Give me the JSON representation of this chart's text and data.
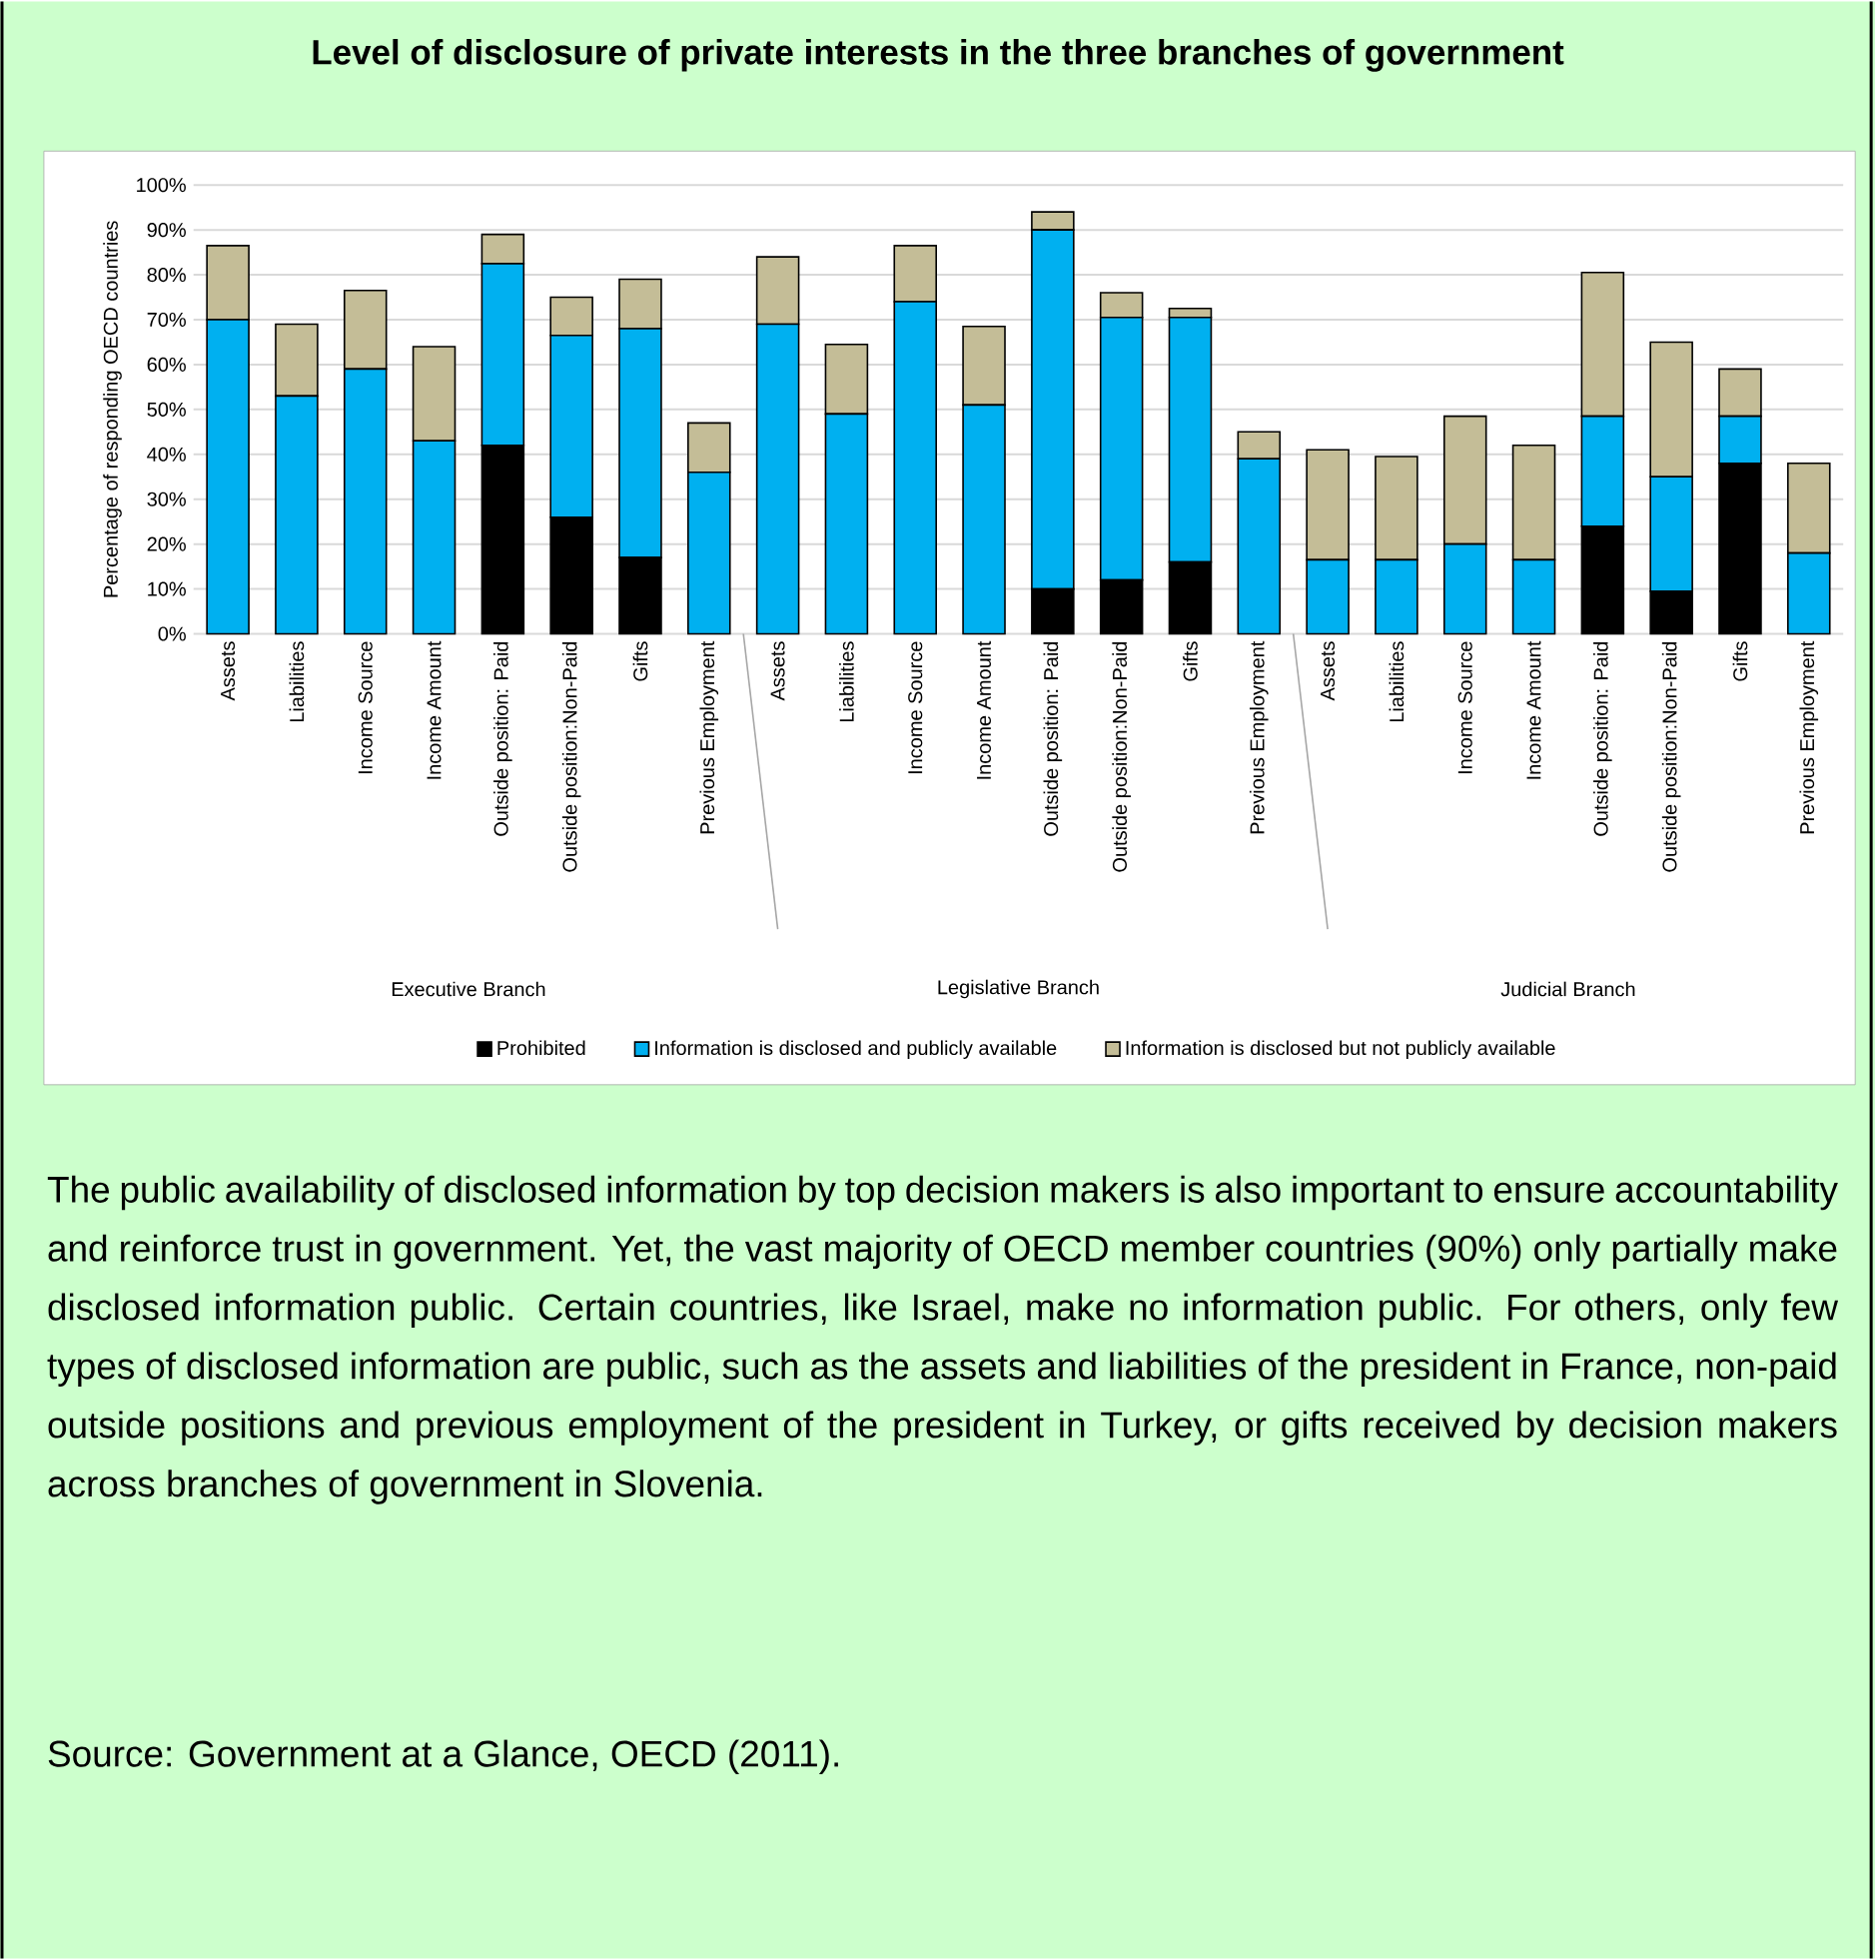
{
  "chart_data": {
    "type": "bar",
    "stacked": true,
    "title": "Level of disclosure of private interests in the three branches of government",
    "ylabel": "Percentage of responding OECD countries",
    "categories": [
      "Assets",
      "Liabilities",
      "Income Source",
      "Income Amount",
      "Outside position: Paid",
      "Outside position:Non-Paid",
      "Gifts",
      "Previous Employment",
      "Assets",
      "Liabilities",
      "Income Source",
      "Income Amount",
      "Outside position: Paid",
      "Outside position:Non-Paid",
      "Gifts",
      "Previous Employment",
      "Assets",
      "Liabilities",
      "Income Source",
      "Income Amount",
      "Outside position: Paid",
      "Outside position:Non-Paid",
      "Gifts",
      "Previous Employment"
    ],
    "series": [
      {
        "name": "Prohibited",
        "color": "#000000",
        "values": [
          0,
          0,
          0,
          0,
          42,
          26,
          17,
          0,
          0,
          0,
          0,
          0,
          10,
          12,
          16,
          0,
          0,
          0,
          0,
          0,
          24,
          9.5,
          38,
          0
        ]
      },
      {
        "name": "Information is disclosed and publicly available",
        "color": "#00b0f0",
        "values": [
          70,
          53,
          59,
          43,
          40.5,
          40.5,
          51,
          36,
          69,
          49,
          74,
          51,
          80,
          58.5,
          54.5,
          39,
          16.5,
          16.5,
          20,
          16.5,
          24.5,
          25.5,
          10.5,
          18
        ]
      },
      {
        "name": "Information is disclosed but not publicly available",
        "color": "#c4bd97",
        "values": [
          16.5,
          16,
          17.5,
          21,
          6.5,
          8.5,
          11,
          11,
          15,
          15.5,
          12.5,
          17.5,
          4,
          5.5,
          2,
          6,
          24.5,
          23,
          28.5,
          25.5,
          32,
          30,
          10.5,
          20
        ]
      }
    ],
    "ylim": [
      0,
      100
    ],
    "yticks": [
      {
        "value": 0,
        "label": "0%"
      },
      {
        "value": 10,
        "label": "10%"
      },
      {
        "value": 20,
        "label": "20%"
      },
      {
        "value": 30,
        "label": "30%"
      },
      {
        "value": 40,
        "label": "40%"
      },
      {
        "value": 50,
        "label": "50%"
      },
      {
        "value": 60,
        "label": "60%"
      },
      {
        "value": 70,
        "label": "70%"
      },
      {
        "value": 80,
        "label": "80%"
      },
      {
        "value": 90,
        "label": "90%"
      },
      {
        "value": 100,
        "label": "100%"
      }
    ],
    "grid": "y",
    "legend": "bottom",
    "annotations": [
      "Executive Branch",
      "Legislative Branch",
      "Judicial Branch",
      "The public availability of disclosed information by top decision makers is also important to ensure accountability and reinforce trust in government. Yet, the vast majority of OECD member countries (90%) only partially make disclosed information public. Certain countries, like Israel, make no information public. For others, only few types of disclosed information are public, such as the assets and liabilities of the president in France, non-paid outside positions and previous employment of the president in Turkey, or gifts received by decision makers across branches of government in Slovenia.",
      "Source:  Government at a Glance, OECD (2011)."
    ]
  }
}
